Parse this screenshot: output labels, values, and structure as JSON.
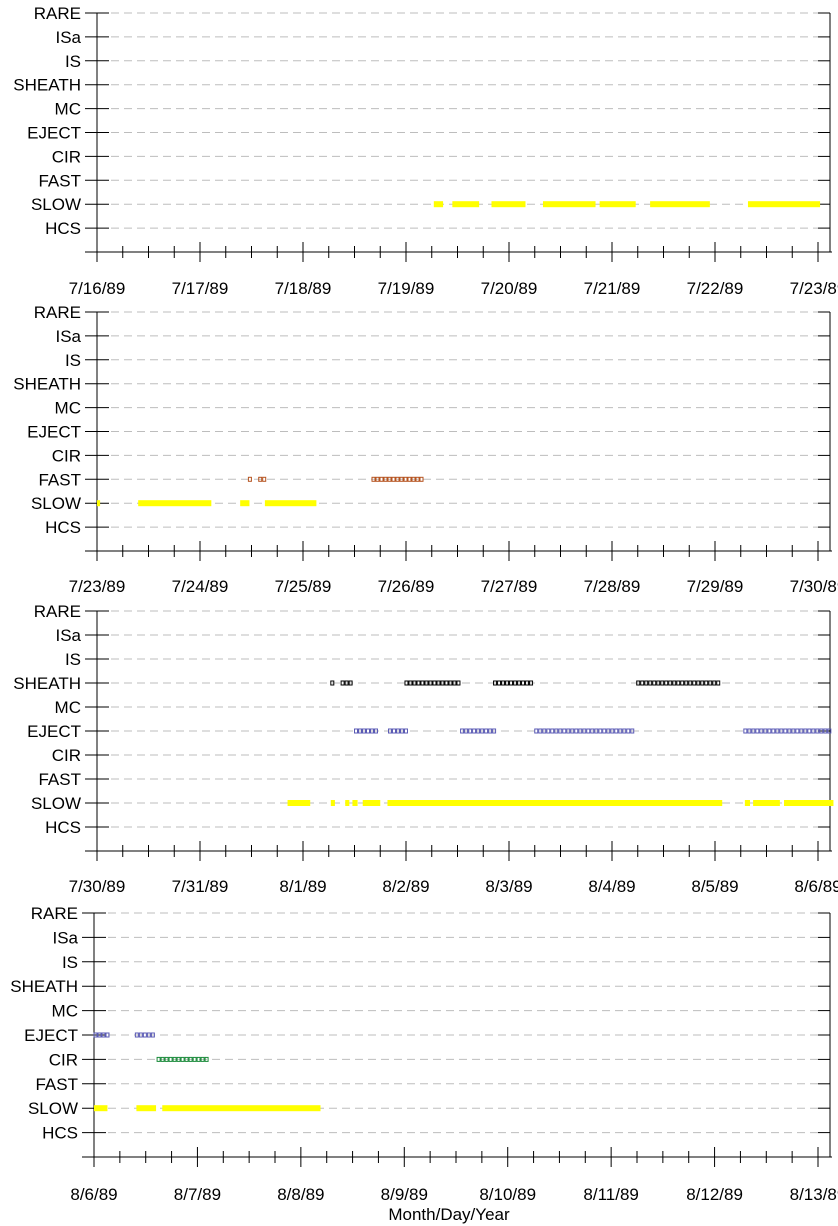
{
  "chart_data": {
    "type": "scatter",
    "xlabel": "Month/Day/Year",
    "categories": [
      "RARE",
      "ISa",
      "IS",
      "SHEATH",
      "MC",
      "EJECT",
      "CIR",
      "FAST",
      "SLOW",
      "HCS"
    ],
    "colors": {
      "SLOW": "#ffff00",
      "FAST": "#b5531f",
      "SHEATH": "#000000",
      "EJECT": "#5a5ab4",
      "CIR": "#1a8a3a"
    },
    "panels": [
      {
        "date_labels": [
          "7/16/89",
          "7/17/89",
          "7/18/89",
          "7/19/89",
          "7/20/89",
          "7/21/89",
          "7/22/89",
          "7/23/89"
        ],
        "intervals": [
          {
            "category": "SLOW",
            "start": 3.27,
            "end": 3.36
          },
          {
            "category": "SLOW",
            "start": 3.45,
            "end": 3.71
          },
          {
            "category": "SLOW",
            "start": 3.83,
            "end": 4.16
          },
          {
            "category": "SLOW",
            "start": 4.33,
            "end": 4.84
          },
          {
            "category": "SLOW",
            "start": 4.88,
            "end": 5.23
          },
          {
            "category": "SLOW",
            "start": 5.37,
            "end": 5.95
          },
          {
            "category": "SLOW",
            "start": 6.32,
            "end": 7.02
          }
        ]
      },
      {
        "date_labels": [
          "7/23/89",
          "7/24/89",
          "7/25/89",
          "7/26/89",
          "7/27/89",
          "7/28/89",
          "7/29/89",
          "7/30/89"
        ],
        "intervals": [
          {
            "category": "SLOW",
            "start": 0.0,
            "end": 0.03
          },
          {
            "category": "SLOW",
            "start": 0.4,
            "end": 1.11
          },
          {
            "category": "SLOW",
            "start": 1.39,
            "end": 1.48
          },
          {
            "category": "SLOW",
            "start": 1.63,
            "end": 2.13
          },
          {
            "category": "FAST",
            "start": 1.47,
            "end": 1.52
          },
          {
            "category": "FAST",
            "start": 1.57,
            "end": 1.66
          },
          {
            "category": "FAST",
            "start": 2.67,
            "end": 3.18
          }
        ]
      },
      {
        "date_labels": [
          "7/30/89",
          "7/31/89",
          "8/1/89",
          "8/2/89",
          "8/3/89",
          "8/4/89",
          "8/5/89",
          "8/6/89"
        ],
        "intervals": [
          {
            "category": "SLOW",
            "start": 1.85,
            "end": 2.07
          },
          {
            "category": "SLOW",
            "start": 2.27,
            "end": 2.31
          },
          {
            "category": "SLOW",
            "start": 2.41,
            "end": 2.45
          },
          {
            "category": "SLOW",
            "start": 2.48,
            "end": 2.53
          },
          {
            "category": "SLOW",
            "start": 2.58,
            "end": 2.75
          },
          {
            "category": "SLOW",
            "start": 2.82,
            "end": 6.07
          },
          {
            "category": "SLOW",
            "start": 6.29,
            "end": 6.34
          },
          {
            "category": "SLOW",
            "start": 6.37,
            "end": 6.63
          },
          {
            "category": "SLOW",
            "start": 6.67,
            "end": 7.15
          },
          {
            "category": "SHEATH",
            "start": 2.27,
            "end": 2.31
          },
          {
            "category": "SHEATH",
            "start": 2.37,
            "end": 2.49
          },
          {
            "category": "SHEATH",
            "start": 2.99,
            "end": 3.52
          },
          {
            "category": "SHEATH",
            "start": 3.85,
            "end": 4.22
          },
          {
            "category": "SHEATH",
            "start": 5.24,
            "end": 6.07
          },
          {
            "category": "EJECT",
            "start": 2.5,
            "end": 2.75
          },
          {
            "category": "EJECT",
            "start": 2.83,
            "end": 3.01
          },
          {
            "category": "EJECT",
            "start": 3.53,
            "end": 3.87
          },
          {
            "category": "EJECT",
            "start": 4.25,
            "end": 5.24
          },
          {
            "category": "EJECT",
            "start": 6.28,
            "end": 7.15
          }
        ]
      },
      {
        "date_labels": [
          "8/6/89",
          "8/7/89",
          "8/8/89",
          "8/9/89",
          "8/10/89",
          "8/11/89",
          "8/12/89",
          "8/13/89"
        ],
        "intervals": [
          {
            "category": "SLOW",
            "start": 0.0,
            "end": 0.13
          },
          {
            "category": "SLOW",
            "start": 0.41,
            "end": 0.6
          },
          {
            "category": "SLOW",
            "start": 0.66,
            "end": 2.19
          },
          {
            "category": "EJECT",
            "start": 0.0,
            "end": 0.14
          },
          {
            "category": "EJECT",
            "start": 0.4,
            "end": 0.6
          },
          {
            "category": "CIR",
            "start": 0.61,
            "end": 1.11
          }
        ]
      }
    ]
  }
}
